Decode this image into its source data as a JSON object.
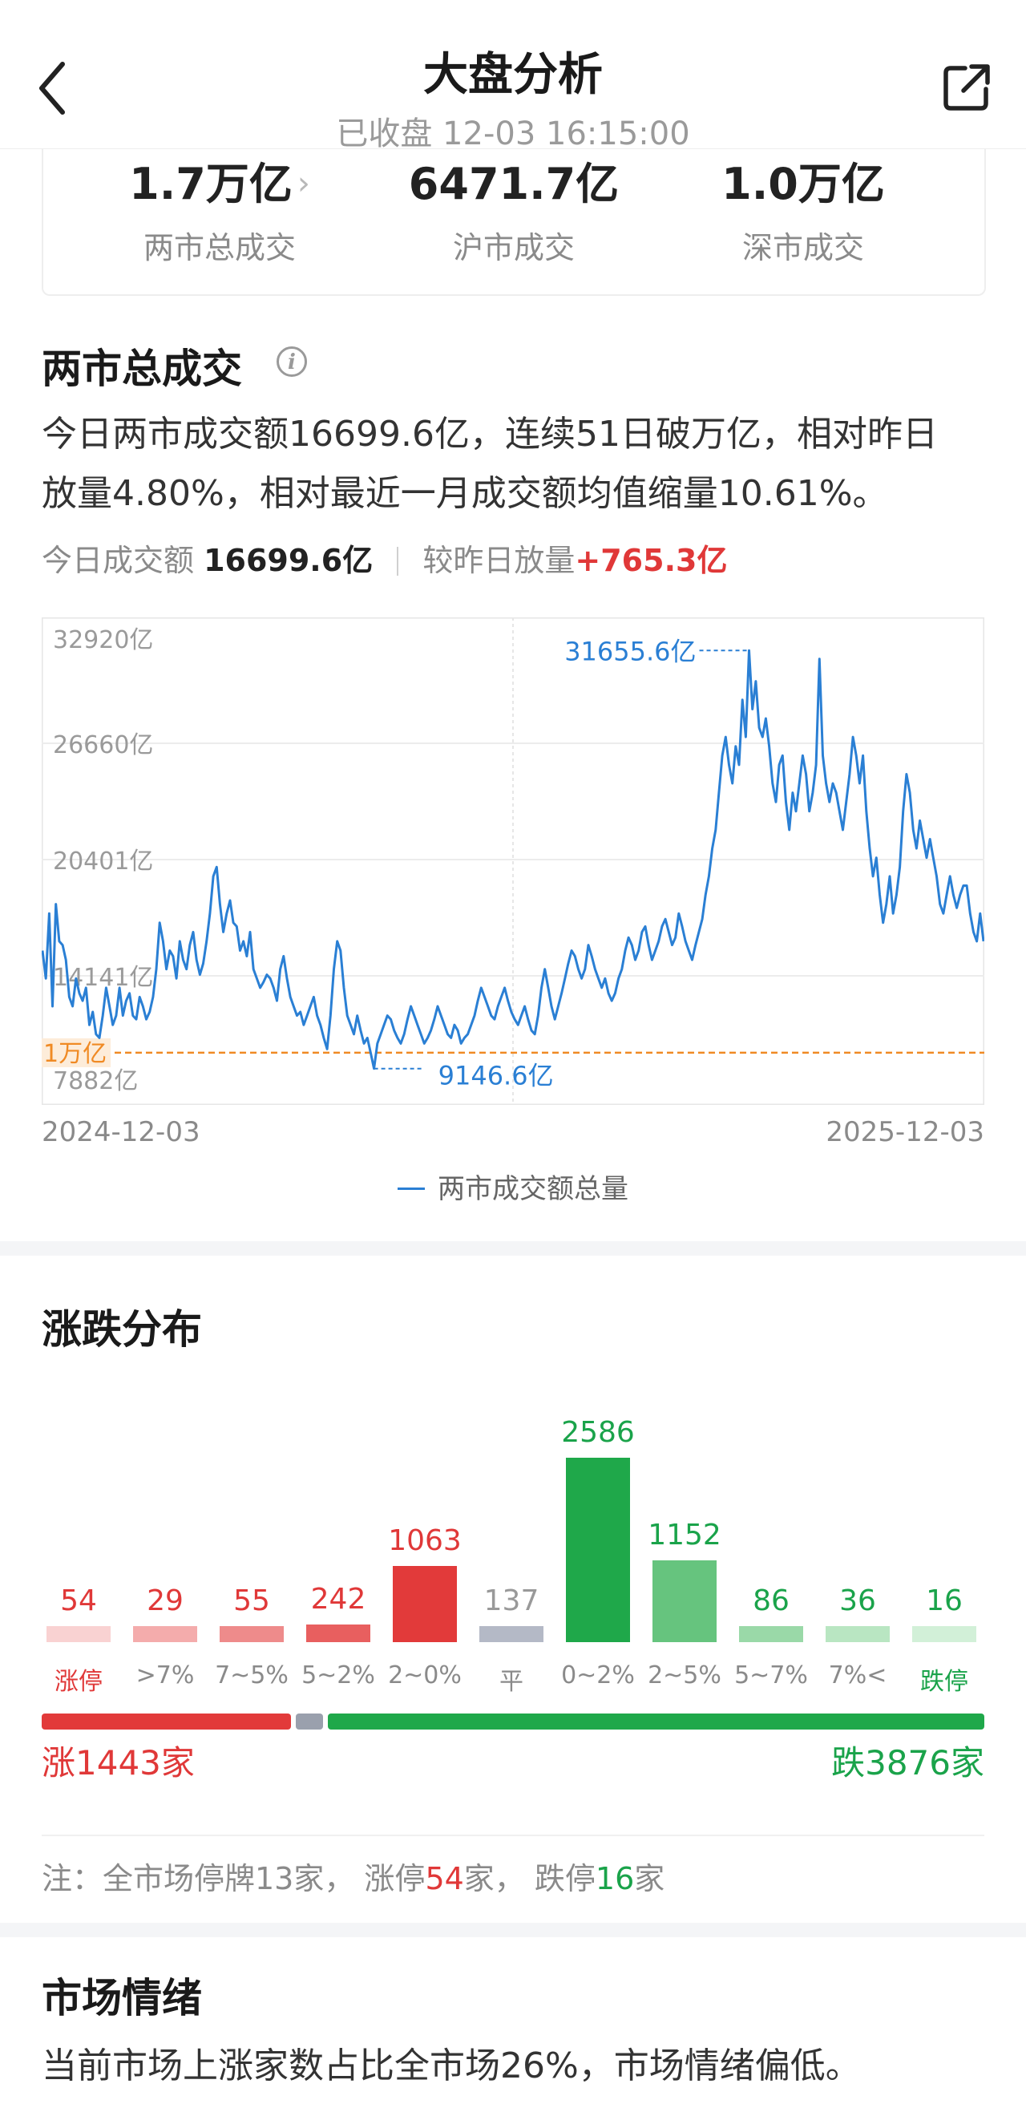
{
  "header": {
    "title": "大盘分析",
    "status": "已收盘 12-03 16:15:00",
    "back_icon": "chevron-left-icon",
    "share_icon": "share-external-icon"
  },
  "summary": [
    {
      "value": "1.7万亿",
      "label": "两市总成交",
      "has_chevron": true
    },
    {
      "value": "6471.7亿",
      "label": "沪市成交"
    },
    {
      "value": "1.0万亿",
      "label": "深市成交"
    }
  ],
  "volume_section": {
    "title": "两市总成交",
    "info_icon": "info-icon",
    "description_line1": "今日两市成交额16699.6亿，连续51日破万亿，相对昨日",
    "description_line2": "放量4.80%，相对最近一月成交额均值缩量10.61%。",
    "today_label": "今日成交额",
    "today_value": "16699.6亿",
    "compare_label": "较昨日放量",
    "compare_value": "+765.3亿",
    "start_date": "2024-12-03",
    "end_date": "2025-12-03",
    "legend": "两市成交额总量"
  },
  "chart_data": {
    "type": "line",
    "series": [
      {
        "name": "两市成交额总量",
        "color": "#2a7fd4"
      }
    ],
    "y_ticks": [
      "32920亿",
      "26660亿",
      "20401亿",
      "14141亿",
      "7882亿"
    ],
    "ylim": [
      7882,
      32920
    ],
    "reference_line": {
      "label": "1万亿",
      "value": 10000,
      "color": "#f08a24"
    },
    "max_label": "31655.6亿",
    "max_value": 31655.6,
    "min_label": "9146.6亿",
    "min_value": 9146.6,
    "values": [
      15500,
      14000,
      17500,
      12500,
      18000,
      16000,
      15800,
      15000,
      13000,
      12500,
      14000,
      13200,
      12800,
      13500,
      11500,
      12200,
      11000,
      10800,
      12000,
      13500,
      12500,
      11500,
      12000,
      13500,
      12000,
      12800,
      13200,
      12000,
      11800,
      13000,
      12500,
      11800,
      12200,
      13000,
      14500,
      17000,
      16000,
      14500,
      15500,
      15200,
      14000,
      16000,
      15000,
      14500,
      15800,
      16500,
      15000,
      14200,
      14800,
      16000,
      17500,
      19500,
      20000,
      18000,
      16500,
      17500,
      18200,
      17000,
      16800,
      15500,
      16000,
      15200,
      16500,
      14500,
      14000,
      13500,
      13800,
      14200,
      14000,
      13500,
      12800,
      14500,
      15200,
      14000,
      13000,
      12500,
      12000,
      12200,
      11500,
      12000,
      12500,
      13000,
      12000,
      11500,
      10800,
      10200,
      12000,
      14500,
      16000,
      15500,
      13500,
      12000,
      11500,
      11000,
      12000,
      11200,
      10500,
      10800,
      10000,
      9146.6,
      10500,
      11000,
      11500,
      12000,
      11800,
      11200,
      10800,
      10500,
      11000,
      11800,
      12500,
      12000,
      11500,
      11000,
      10500,
      10800,
      11200,
      11800,
      12500,
      12000,
      11500,
      11000,
      10800,
      11500,
      11200,
      10500,
      10800,
      11000,
      11500,
      12000,
      12800,
      13500,
      13000,
      12500,
      12000,
      11800,
      12500,
      13000,
      13500,
      12800,
      12200,
      11800,
      11500,
      12000,
      12500,
      11800,
      11200,
      11000,
      12000,
      13500,
      14500,
      13500,
      12500,
      11800,
      12500,
      13200,
      14000,
      14800,
      15500,
      15200,
      14500,
      14000,
      14500,
      15800,
      15200,
      14500,
      14000,
      13500,
      14000,
      13200,
      12800,
      13200,
      14000,
      14500,
      15500,
      16200,
      15800,
      15000,
      15500,
      16500,
      16800,
      15800,
      15000,
      15500,
      16000,
      16800,
      17200,
      16500,
      15800,
      16200,
      17500,
      16800,
      16000,
      15500,
      15000,
      15800,
      16500,
      17200,
      18500,
      19500,
      21000,
      22000,
      24000,
      26000,
      27000,
      25500,
      24500,
      26500,
      25500,
      29000,
      27000,
      31655.6,
      28500,
      30000,
      27500,
      27000,
      28000,
      26500,
      24500,
      23500,
      25500,
      26000,
      23500,
      22000,
      24000,
      23000,
      24500,
      26000,
      25000,
      23000,
      24000,
      25500,
      31200,
      26000,
      24500,
      23500,
      24500,
      24000,
      23000,
      22000,
      23500,
      25000,
      27000,
      26000,
      24500,
      26000,
      23000,
      21000,
      19500,
      20500,
      18500,
      17000,
      18000,
      19500,
      17500,
      18500,
      20000,
      23000,
      25000,
      24000,
      22000,
      21000,
      22500,
      21500,
      20500,
      21500,
      20500,
      19500,
      18000,
      17500,
      18500,
      19500,
      18500,
      17800,
      18500,
      19000,
      19000,
      17500,
      16500,
      16000,
      17500,
      16000
    ],
    "title": "",
    "xlabel": "",
    "ylabel": ""
  },
  "distribution": {
    "title": "涨跌分布",
    "bars": [
      {
        "label": "涨停",
        "value": "54",
        "count": 54,
        "color": "#f9d2d2",
        "text_color": "#e03838",
        "label_color": "#e03838"
      },
      {
        "label": ">7%",
        "value": "29",
        "count": 29,
        "color": "#f4acac",
        "text_color": "#e03838",
        "label_color": "#8a8a8a"
      },
      {
        "label": "7~5%",
        "value": "55",
        "count": 55,
        "color": "#ee8b8b",
        "text_color": "#e03838",
        "label_color": "#8a8a8a"
      },
      {
        "label": "5~2%",
        "value": "242",
        "count": 242,
        "color": "#e85f5f",
        "text_color": "#e03838",
        "label_color": "#8a8a8a"
      },
      {
        "label": "2~0%",
        "value": "1063",
        "count": 1063,
        "color": "#e23a3a",
        "text_color": "#e03838",
        "label_color": "#8a8a8a"
      },
      {
        "label": "平",
        "value": "137",
        "count": 137,
        "color": "#b4b9c6",
        "text_color": "#999999",
        "label_color": "#8a8a8a"
      },
      {
        "label": "0~2%",
        "value": "2586",
        "count": 2586,
        "color": "#1fa84a",
        "text_color": "#1aa34a",
        "label_color": "#8a8a8a"
      },
      {
        "label": "2~5%",
        "value": "1152",
        "count": 1152,
        "color": "#66c47e",
        "text_color": "#1aa34a",
        "label_color": "#8a8a8a"
      },
      {
        "label": "5~7%",
        "value": "86",
        "count": 86,
        "color": "#9ad9a8",
        "text_color": "#1aa34a",
        "label_color": "#8a8a8a"
      },
      {
        "label": "7%<",
        "value": "36",
        "count": 36,
        "color": "#b9e6c2",
        "text_color": "#1aa34a",
        "label_color": "#8a8a8a"
      },
      {
        "label": "跌停",
        "value": "16",
        "count": 16,
        "color": "#d2f0d8",
        "text_color": "#1aa34a",
        "label_color": "#1aa34a"
      }
    ],
    "up_text": "涨1443家",
    "down_text": "跌3876家",
    "up_count": 1443,
    "flat_count": 137,
    "down_count": 3876,
    "note_prefix": "注：全市场停牌13家，  涨停",
    "note_up_limit": "54",
    "note_mid": "家，  跌停",
    "note_down_limit": "16",
    "note_suffix": "家"
  },
  "sentiment": {
    "title": "市场情绪",
    "text": "当前市场上涨家数占比全市场26%，市场情绪偏低。"
  }
}
